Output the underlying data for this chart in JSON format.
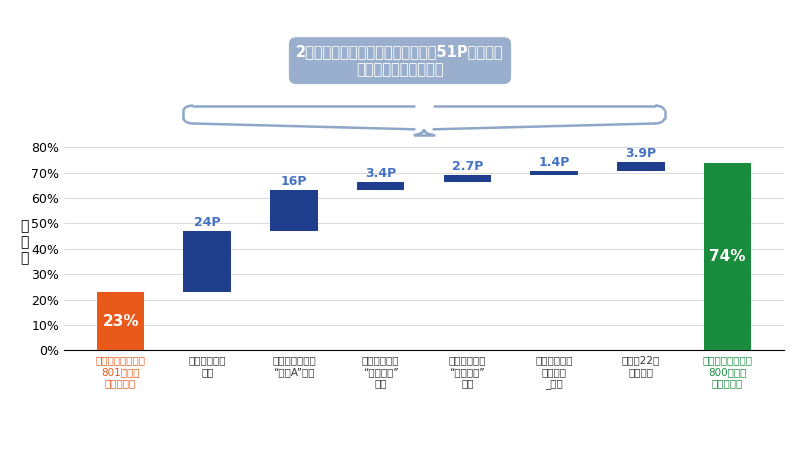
{
  "categories": [
    "会員ポイント残高\n801以上の\nセグメント",
    "会員ポイント\n残高",
    "商品カテゴリが\n“商品A”の数",
    "ページ種別が\n“商品動画”\nの数",
    "ページ種別が\n“商品動画”\nの数",
    "売り上げ履歴\n（店舗）\n_の数",
    "その他22個\nの特徴量",
    "会員ポイント残高\n800以下の\nセグメント"
  ],
  "bar_bottoms": [
    0,
    23,
    47,
    63,
    66.4,
    69.1,
    70.5,
    0
  ],
  "bar_heights": [
    23,
    24,
    16,
    3.4,
    2.7,
    1.4,
    3.9,
    74
  ],
  "bar_colors": [
    "#E8591A",
    "#1F3E8C",
    "#1F3E8C",
    "#1F3E8C",
    "#1F3E8C",
    "#1F3E8C",
    "#1F3E8C",
    "#1A8C3E"
  ],
  "bar_labels": [
    "23%",
    "24P",
    "16P",
    "3.4P",
    "2.7P",
    "1.4P",
    "3.9P",
    "74%"
  ],
  "label_colors_above": [
    "white",
    "#4472C4",
    "#4472C4",
    "#4472C4",
    "#4472C4",
    "#4472C4",
    "#4472C4",
    "white"
  ],
  "label_inside": [
    true,
    false,
    false,
    false,
    false,
    false,
    false,
    true
  ],
  "ylabel": "離\n反\n率",
  "yticks": [
    0,
    10,
    20,
    30,
    40,
    50,
    60,
    70,
    80
  ],
  "ylim": [
    0,
    85
  ],
  "title_text": "2セグメント間の平均離反率の差分51Pに占める\n各変数の寄与の度合い",
  "title_box_color": "#8EA7C8",
  "title_text_color": "white",
  "brace_color": "#8EA7C8",
  "x_label_colors": [
    "#E8591A",
    "#333333",
    "#333333",
    "#333333",
    "#333333",
    "#333333",
    "#333333",
    "#1A8C3E"
  ],
  "background_color": "white",
  "bar_width": 0.55
}
